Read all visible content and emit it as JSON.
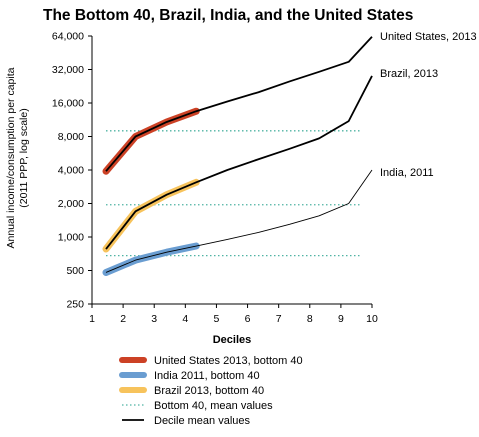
{
  "chart_data": {
    "type": "line",
    "title": "The Bottom 40, Brazil, India, and the United States",
    "xlabel": "Deciles",
    "ylabel": "Annual income/consumption per capita (2011 PPP, log scale)",
    "ylabel_lines": [
      "Annual income/consumption per capita",
      "(2011 PPP, log scale)"
    ],
    "yscale": "log",
    "xlim": [
      1,
      10
    ],
    "ylim": [
      250,
      64000
    ],
    "x_ticks": [
      1,
      2,
      3,
      4,
      5,
      6,
      7,
      8,
      9,
      10
    ],
    "x_tick_labels": [
      "1",
      "2",
      "3",
      "4",
      "5",
      "6",
      "7",
      "8",
      "9",
      "10"
    ],
    "y_ticks": [
      250,
      500,
      1000,
      2000,
      4000,
      8000,
      16000,
      32000,
      64000
    ],
    "y_tick_labels": [
      "250",
      "500",
      "1,000",
      "2,000",
      "4,000",
      "8,000",
      "16,000",
      "32,000",
      "64,000"
    ],
    "x": [
      1.45,
      2.4,
      3.4,
      4.35,
      5.35,
      6.35,
      7.35,
      8.3,
      9.25,
      10
    ],
    "series": [
      {
        "name": "United States, 2013",
        "values": [
          3900,
          8000,
          10800,
          13500,
          16500,
          20000,
          25000,
          30500,
          37500,
          63000
        ],
        "line_color": "#000000",
        "line_width": 1.8,
        "bottom40_mean": 9000,
        "highlight_color": "#cc4125"
      },
      {
        "name": "Brazil, 2013",
        "values": [
          780,
          1700,
          2400,
          3100,
          4000,
          5000,
          6200,
          7700,
          11000,
          28000
        ],
        "line_color": "#000000",
        "line_width": 1.8,
        "bottom40_mean": 1950,
        "highlight_color": "#f7c35c"
      },
      {
        "name": "India, 2011",
        "values": [
          480,
          620,
          730,
          830,
          950,
          1100,
          1300,
          1550,
          2000,
          4000
        ],
        "line_color": "#000000",
        "line_width": 0.9,
        "bottom40_mean": 680,
        "highlight_color": "#6a9dd1"
      }
    ],
    "mean_line_color": "#4fb3a3",
    "annotations": [
      "United States, 2013",
      "Brazil, 2013",
      "India, 2011"
    ],
    "legend": {
      "placement": "bottom-left",
      "entries": [
        {
          "label": "United States 2013, bottom 40",
          "kind": "thick",
          "color": "#cc4125"
        },
        {
          "label": "India 2011, bottom 40",
          "kind": "thick",
          "color": "#6a9dd1"
        },
        {
          "label": "Brazil 2013,  bottom 40",
          "kind": "thick",
          "color": "#f7c35c"
        },
        {
          "label": "Bottom 40, mean values",
          "kind": "dotted",
          "color": "#4fb3a3"
        },
        {
          "label": "Decile mean values",
          "kind": "line",
          "color": "#000000"
        }
      ]
    }
  }
}
